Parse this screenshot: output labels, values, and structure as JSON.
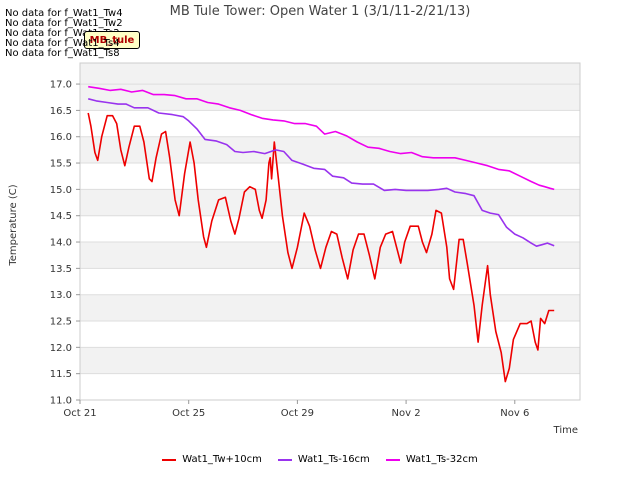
{
  "no_data_messages": [
    "No data for f_Wat1_Tw4",
    "No data for f_Wat1_Tw2",
    "No data for f_Wat1_Ts2",
    "No data for f_Wat1_Ts4",
    "No data for f_Wat1_Ts8"
  ],
  "badge_label": "MB_tule",
  "chart_data": {
    "type": "line",
    "title": "MB Tule Tower: Open Water 1 (3/1/11-2/21/13)",
    "xlabel": "Time",
    "ylabel": "Temperature (C)",
    "xlim": [
      0,
      18.4
    ],
    "ylim": [
      11.0,
      17.4
    ],
    "x_ticks": [
      {
        "value": 0,
        "label": "Oct 21"
      },
      {
        "value": 4,
        "label": "Oct 25"
      },
      {
        "value": 8,
        "label": "Oct 29"
      },
      {
        "value": 12,
        "label": "Nov 2"
      },
      {
        "value": 16,
        "label": "Nov 6"
      }
    ],
    "y_ticks": [
      11.0,
      11.5,
      12.0,
      12.5,
      13.0,
      13.5,
      14.0,
      14.5,
      15.0,
      15.5,
      16.0,
      16.5,
      17.0
    ],
    "series": [
      {
        "name": "Wat1_Tw+10cm",
        "color": "#ee0000",
        "points": [
          [
            0.3,
            16.45
          ],
          [
            0.4,
            16.2
          ],
          [
            0.55,
            15.7
          ],
          [
            0.65,
            15.55
          ],
          [
            0.8,
            16.0
          ],
          [
            1.0,
            16.4
          ],
          [
            1.2,
            16.4
          ],
          [
            1.35,
            16.25
          ],
          [
            1.5,
            15.75
          ],
          [
            1.65,
            15.45
          ],
          [
            1.8,
            15.8
          ],
          [
            2.0,
            16.2
          ],
          [
            2.2,
            16.2
          ],
          [
            2.35,
            15.9
          ],
          [
            2.55,
            15.2
          ],
          [
            2.65,
            15.15
          ],
          [
            2.8,
            15.6
          ],
          [
            3.0,
            16.05
          ],
          [
            3.15,
            16.1
          ],
          [
            3.3,
            15.6
          ],
          [
            3.5,
            14.8
          ],
          [
            3.65,
            14.5
          ],
          [
            3.85,
            15.3
          ],
          [
            4.05,
            15.9
          ],
          [
            4.2,
            15.5
          ],
          [
            4.35,
            14.8
          ],
          [
            4.55,
            14.1
          ],
          [
            4.65,
            13.9
          ],
          [
            4.85,
            14.4
          ],
          [
            5.1,
            14.8
          ],
          [
            5.35,
            14.85
          ],
          [
            5.55,
            14.4
          ],
          [
            5.7,
            14.15
          ],
          [
            5.85,
            14.45
          ],
          [
            6.05,
            14.95
          ],
          [
            6.25,
            15.05
          ],
          [
            6.45,
            15.0
          ],
          [
            6.6,
            14.6
          ],
          [
            6.7,
            14.45
          ],
          [
            6.85,
            14.8
          ],
          [
            6.95,
            15.5
          ],
          [
            7.0,
            15.6
          ],
          [
            7.05,
            15.2
          ],
          [
            7.15,
            15.9
          ],
          [
            7.3,
            15.2
          ],
          [
            7.45,
            14.5
          ],
          [
            7.65,
            13.8
          ],
          [
            7.8,
            13.5
          ],
          [
            8.0,
            13.9
          ],
          [
            8.25,
            14.55
          ],
          [
            8.45,
            14.3
          ],
          [
            8.65,
            13.85
          ],
          [
            8.85,
            13.5
          ],
          [
            9.05,
            13.9
          ],
          [
            9.25,
            14.2
          ],
          [
            9.45,
            14.15
          ],
          [
            9.65,
            13.7
          ],
          [
            9.85,
            13.3
          ],
          [
            10.05,
            13.85
          ],
          [
            10.25,
            14.15
          ],
          [
            10.45,
            14.15
          ],
          [
            10.65,
            13.75
          ],
          [
            10.85,
            13.3
          ],
          [
            11.05,
            13.9
          ],
          [
            11.25,
            14.15
          ],
          [
            11.5,
            14.2
          ],
          [
            11.65,
            13.9
          ],
          [
            11.8,
            13.6
          ],
          [
            11.95,
            14.0
          ],
          [
            12.15,
            14.3
          ],
          [
            12.45,
            14.3
          ],
          [
            12.6,
            14.0
          ],
          [
            12.75,
            13.8
          ],
          [
            12.95,
            14.15
          ],
          [
            13.1,
            14.6
          ],
          [
            13.3,
            14.55
          ],
          [
            13.5,
            13.9
          ],
          [
            13.6,
            13.3
          ],
          [
            13.75,
            13.1
          ],
          [
            13.95,
            14.05
          ],
          [
            14.1,
            14.05
          ],
          [
            14.25,
            13.6
          ],
          [
            14.5,
            12.8
          ],
          [
            14.65,
            12.1
          ],
          [
            14.8,
            12.8
          ],
          [
            15.0,
            13.55
          ],
          [
            15.1,
            13.0
          ],
          [
            15.3,
            12.3
          ],
          [
            15.5,
            11.9
          ],
          [
            15.65,
            11.35
          ],
          [
            15.8,
            11.6
          ],
          [
            15.95,
            12.15
          ],
          [
            16.2,
            12.45
          ],
          [
            16.45,
            12.45
          ],
          [
            16.6,
            12.5
          ],
          [
            16.75,
            12.1
          ],
          [
            16.85,
            11.95
          ],
          [
            16.95,
            12.55
          ],
          [
            17.1,
            12.45
          ],
          [
            17.25,
            12.7
          ],
          [
            17.45,
            12.7
          ]
        ]
      },
      {
        "name": "Wat1_Ts-16cm",
        "color": "#9933ee",
        "points": [
          [
            0.3,
            16.72
          ],
          [
            0.6,
            16.68
          ],
          [
            1.0,
            16.65
          ],
          [
            1.4,
            16.62
          ],
          [
            1.7,
            16.62
          ],
          [
            2.0,
            16.55
          ],
          [
            2.5,
            16.55
          ],
          [
            2.9,
            16.45
          ],
          [
            3.4,
            16.42
          ],
          [
            3.8,
            16.38
          ],
          [
            4.0,
            16.3
          ],
          [
            4.3,
            16.15
          ],
          [
            4.6,
            15.95
          ],
          [
            5.0,
            15.92
          ],
          [
            5.4,
            15.85
          ],
          [
            5.7,
            15.72
          ],
          [
            6.0,
            15.7
          ],
          [
            6.4,
            15.72
          ],
          [
            6.8,
            15.68
          ],
          [
            7.2,
            15.75
          ],
          [
            7.5,
            15.72
          ],
          [
            7.8,
            15.55
          ],
          [
            8.2,
            15.48
          ],
          [
            8.6,
            15.4
          ],
          [
            9.0,
            15.38
          ],
          [
            9.3,
            15.25
          ],
          [
            9.7,
            15.22
          ],
          [
            10.0,
            15.12
          ],
          [
            10.4,
            15.1
          ],
          [
            10.8,
            15.1
          ],
          [
            11.2,
            14.98
          ],
          [
            11.6,
            15.0
          ],
          [
            12.0,
            14.98
          ],
          [
            12.4,
            14.98
          ],
          [
            12.8,
            14.98
          ],
          [
            13.2,
            15.0
          ],
          [
            13.5,
            15.02
          ],
          [
            13.8,
            14.95
          ],
          [
            14.2,
            14.92
          ],
          [
            14.5,
            14.88
          ],
          [
            14.8,
            14.6
          ],
          [
            15.1,
            14.55
          ],
          [
            15.4,
            14.52
          ],
          [
            15.7,
            14.28
          ],
          [
            16.0,
            14.15
          ],
          [
            16.3,
            14.08
          ],
          [
            16.6,
            13.98
          ],
          [
            16.8,
            13.92
          ],
          [
            17.0,
            13.95
          ],
          [
            17.2,
            13.98
          ],
          [
            17.45,
            13.93
          ]
        ]
      },
      {
        "name": "Wat1_Ts-32cm",
        "color": "#ee00ee",
        "points": [
          [
            0.3,
            16.95
          ],
          [
            0.7,
            16.92
          ],
          [
            1.1,
            16.88
          ],
          [
            1.5,
            16.9
          ],
          [
            1.9,
            16.85
          ],
          [
            2.3,
            16.88
          ],
          [
            2.7,
            16.8
          ],
          [
            3.1,
            16.8
          ],
          [
            3.5,
            16.78
          ],
          [
            3.9,
            16.72
          ],
          [
            4.3,
            16.72
          ],
          [
            4.7,
            16.65
          ],
          [
            5.1,
            16.62
          ],
          [
            5.5,
            16.55
          ],
          [
            5.9,
            16.5
          ],
          [
            6.3,
            16.42
          ],
          [
            6.7,
            16.35
          ],
          [
            7.1,
            16.32
          ],
          [
            7.5,
            16.3
          ],
          [
            7.9,
            16.25
          ],
          [
            8.3,
            16.25
          ],
          [
            8.7,
            16.2
          ],
          [
            9.0,
            16.05
          ],
          [
            9.4,
            16.1
          ],
          [
            9.8,
            16.02
          ],
          [
            10.2,
            15.9
          ],
          [
            10.6,
            15.8
          ],
          [
            11.0,
            15.78
          ],
          [
            11.4,
            15.72
          ],
          [
            11.8,
            15.68
          ],
          [
            12.2,
            15.7
          ],
          [
            12.6,
            15.62
          ],
          [
            13.0,
            15.6
          ],
          [
            13.4,
            15.6
          ],
          [
            13.8,
            15.6
          ],
          [
            14.2,
            15.55
          ],
          [
            14.6,
            15.5
          ],
          [
            15.0,
            15.45
          ],
          [
            15.4,
            15.38
          ],
          [
            15.8,
            15.35
          ],
          [
            16.2,
            15.25
          ],
          [
            16.6,
            15.15
          ],
          [
            16.9,
            15.08
          ],
          [
            17.1,
            15.05
          ],
          [
            17.3,
            15.02
          ],
          [
            17.45,
            15.0
          ]
        ]
      }
    ]
  }
}
